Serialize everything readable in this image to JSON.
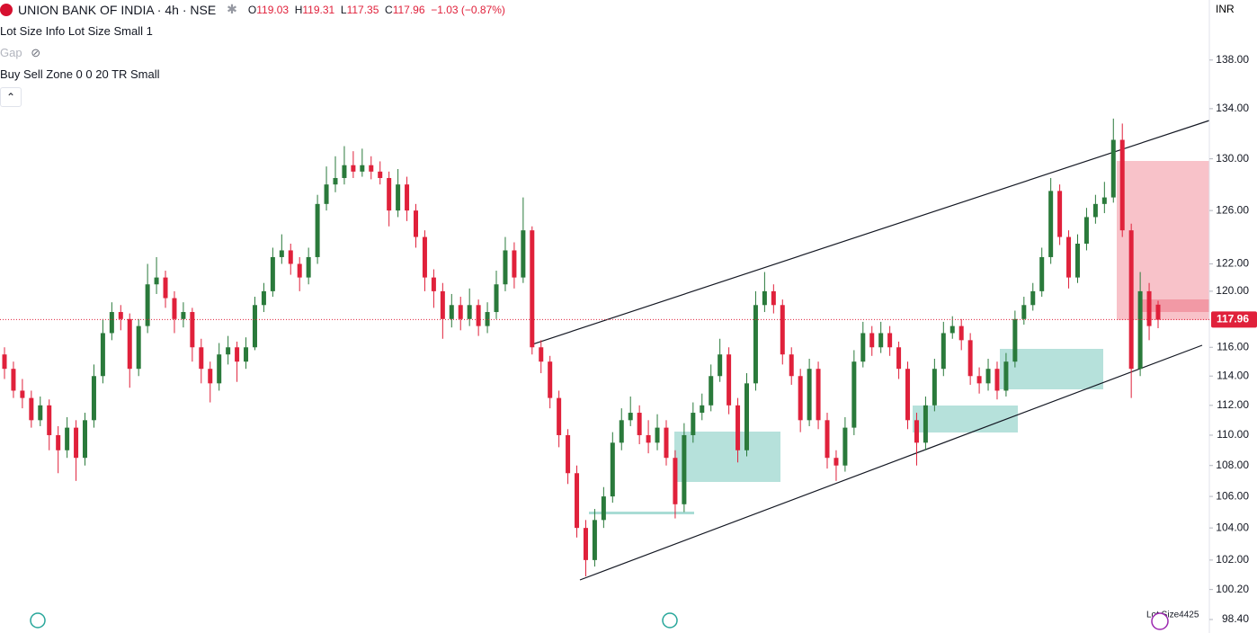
{
  "header": {
    "symbol": "UNION BANK OF INDIA · 4h · NSE",
    "ohlc_legend": [
      {
        "label": "O",
        "value": 119.03
      },
      {
        "label": "H",
        "value": 119.31
      },
      {
        "label": "L",
        "value": 117.35
      },
      {
        "label": "C",
        "value": 117.96
      }
    ],
    "change": "−1.03 (−0.87%)"
  },
  "indicators": [
    "Lot Size Info Lot Size Small 1",
    "Gap",
    "Buy Sell Zone 0 0 20 TR Small"
  ],
  "lot_size_badge": "Lot Size4425",
  "chart_data": {
    "type": "candlestick",
    "currency": "INR",
    "log_scale": true,
    "ylim": [
      97.6,
      143.1
    ],
    "yticks": [
      {
        "value": 138,
        "label": "138.00"
      },
      {
        "value": 134,
        "label": "134.00"
      },
      {
        "value": 130,
        "label": "130.00"
      },
      {
        "value": 126,
        "label": "126.00"
      },
      {
        "value": 122,
        "label": "122.00"
      },
      {
        "value": 120,
        "label": "120.00"
      },
      {
        "value": 116,
        "label": "116.00"
      },
      {
        "value": 114,
        "label": "114.00"
      },
      {
        "value": 112,
        "label": "112.00"
      },
      {
        "value": 110,
        "label": "110.00"
      },
      {
        "value": 108,
        "label": "108.00"
      },
      {
        "value": 106,
        "label": "106.00"
      },
      {
        "value": 104,
        "label": "104.00"
      },
      {
        "value": 102,
        "label": "102.00"
      },
      {
        "value": 100.2,
        "label": "100.20"
      },
      {
        "value": 98.4,
        "label": "98.40"
      }
    ],
    "up_color": "#2a7a3b",
    "down_color": "#e0213b",
    "last_price": 117.96,
    "ohlc": [
      [
        115.5,
        116,
        113.8,
        114.5
      ],
      [
        114.5,
        115,
        112.5,
        113
      ],
      [
        113,
        113.8,
        111.8,
        112.5
      ],
      [
        112.5,
        113,
        110.5,
        111
      ],
      [
        111,
        112.6,
        110.6,
        112
      ],
      [
        112,
        112.4,
        109,
        110
      ],
      [
        110,
        110.6,
        107.5,
        109
      ],
      [
        109,
        111.2,
        108.5,
        110.5
      ],
      [
        110.5,
        111,
        107,
        108.5
      ],
      [
        108.5,
        111.5,
        108,
        111
      ],
      [
        111,
        114.8,
        110.5,
        114
      ],
      [
        114,
        118,
        113.5,
        117
      ],
      [
        117,
        119.2,
        116.5,
        118.5
      ],
      [
        118.5,
        119,
        117.2,
        118
      ],
      [
        118,
        118.4,
        113.2,
        114.5
      ],
      [
        114.5,
        118,
        114,
        117.5
      ],
      [
        117.5,
        122,
        117,
        120.5
      ],
      [
        120.5,
        122.5,
        119.8,
        121
      ],
      [
        121,
        121.5,
        118.8,
        119.5
      ],
      [
        119.5,
        120,
        117,
        118
      ],
      [
        118,
        119.2,
        117.4,
        118.5
      ],
      [
        118.5,
        118.8,
        115,
        116
      ],
      [
        116,
        116.6,
        113.5,
        114.5
      ],
      [
        114.5,
        115,
        112.2,
        113.5
      ],
      [
        113.5,
        116.3,
        113,
        115.5
      ],
      [
        115.5,
        116.8,
        114.8,
        116
      ],
      [
        116,
        116.4,
        113.6,
        115
      ],
      [
        115,
        116.7,
        114.5,
        116
      ],
      [
        116,
        119.6,
        115.8,
        119
      ],
      [
        119,
        120.6,
        118.5,
        120
      ],
      [
        120,
        123.2,
        119.6,
        122.5
      ],
      [
        122.5,
        124.2,
        122,
        123
      ],
      [
        123,
        123.5,
        121.2,
        122
      ],
      [
        122,
        122.5,
        120,
        121
      ],
      [
        121,
        123.2,
        120.5,
        122.5
      ],
      [
        122.5,
        127.2,
        122,
        126.5
      ],
      [
        126.5,
        129.4,
        126,
        128
      ],
      [
        128,
        130.2,
        127.4,
        128.5
      ],
      [
        128.5,
        131,
        128,
        129.5
      ],
      [
        129.5,
        130.6,
        128.5,
        129
      ],
      [
        129,
        130.8,
        128.6,
        129.5
      ],
      [
        129.5,
        130.2,
        128.4,
        129
      ],
      [
        129,
        129.8,
        128,
        128.5
      ],
      [
        128.5,
        129,
        124.8,
        126
      ],
      [
        126,
        129.2,
        125.5,
        128
      ],
      [
        128,
        128.6,
        125.2,
        126
      ],
      [
        126,
        126.5,
        123.2,
        124
      ],
      [
        124,
        124.5,
        120,
        121
      ],
      [
        121,
        121.6,
        118.8,
        120
      ],
      [
        120,
        120.6,
        116.6,
        118
      ],
      [
        118,
        119.8,
        117.4,
        119
      ],
      [
        119,
        119.6,
        117.2,
        118
      ],
      [
        118,
        120.2,
        117.5,
        119
      ],
      [
        119,
        119.4,
        116.8,
        117.5
      ],
      [
        117.5,
        119.2,
        117,
        118.5
      ],
      [
        118.5,
        121.5,
        118,
        120.5
      ],
      [
        120.5,
        124,
        120,
        123
      ],
      [
        123,
        123.6,
        120.2,
        121
      ],
      [
        121,
        127,
        120.6,
        124.5
      ],
      [
        124.5,
        124.8,
        115.5,
        116
      ],
      [
        116,
        116.5,
        114.2,
        115
      ],
      [
        115,
        115.4,
        111.8,
        112.5
      ],
      [
        112.5,
        113,
        109.2,
        110
      ],
      [
        110,
        110.4,
        106.8,
        107.5
      ],
      [
        107.5,
        108,
        103.4,
        104
      ],
      [
        104,
        104.5,
        101,
        102
      ],
      [
        102,
        105.2,
        101.6,
        104.5
      ],
      [
        104.5,
        106.6,
        104,
        106
      ],
      [
        106,
        110.2,
        105.6,
        109.5
      ],
      [
        109.5,
        111.8,
        109,
        111
      ],
      [
        111,
        112.6,
        110.6,
        111.5
      ],
      [
        111.5,
        112,
        109.4,
        110
      ],
      [
        110,
        111,
        108.8,
        109.5
      ],
      [
        109.5,
        111.4,
        109,
        110.5
      ],
      [
        110.5,
        111,
        108,
        108.5
      ],
      [
        108.5,
        109,
        104.6,
        105.5
      ],
      [
        105.5,
        110.8,
        105,
        110
      ],
      [
        110,
        112.2,
        109.5,
        111.5
      ],
      [
        111.5,
        112.8,
        111,
        112
      ],
      [
        112,
        114.8,
        111.6,
        114
      ],
      [
        114,
        116.6,
        113.6,
        115.5
      ],
      [
        115.5,
        116,
        111.4,
        112
      ],
      [
        112,
        112.5,
        108.2,
        109
      ],
      [
        109,
        114.2,
        108.6,
        113.5
      ],
      [
        113.5,
        120,
        113,
        119
      ],
      [
        119,
        121.4,
        118.5,
        120
      ],
      [
        120,
        120.5,
        118.4,
        119
      ],
      [
        119,
        119.4,
        114.8,
        115.5
      ],
      [
        115.5,
        116,
        113.4,
        114
      ],
      [
        114,
        114.5,
        110.2,
        111
      ],
      [
        111,
        115.2,
        110.6,
        114.5
      ],
      [
        114.5,
        115,
        110.4,
        111
      ],
      [
        111,
        111.5,
        107.8,
        108.5
      ],
      [
        108.5,
        109,
        107,
        108
      ],
      [
        108,
        111.2,
        107.6,
        110.5
      ],
      [
        110.5,
        115.8,
        110,
        115
      ],
      [
        115,
        117.8,
        114.6,
        117
      ],
      [
        117,
        117.5,
        115.4,
        116
      ],
      [
        116,
        117.8,
        115.6,
        117
      ],
      [
        117,
        117.5,
        115.4,
        116
      ],
      [
        116,
        116.4,
        113.8,
        114.5
      ],
      [
        114.5,
        115,
        110.4,
        111
      ],
      [
        111,
        111.5,
        108,
        109.5
      ],
      [
        109.5,
        112.6,
        109,
        112
      ],
      [
        112,
        115.2,
        111.6,
        114.5
      ],
      [
        114.5,
        117.8,
        114,
        117
      ],
      [
        117,
        118.2,
        116.6,
        117.5
      ],
      [
        117.5,
        118,
        115.8,
        116.5
      ],
      [
        116.5,
        117,
        113.4,
        114
      ],
      [
        114,
        114.6,
        112.8,
        113.5
      ],
      [
        113.5,
        115.2,
        113,
        114.5
      ],
      [
        114.5,
        115,
        112.4,
        113
      ],
      [
        113,
        115.6,
        112.6,
        115
      ],
      [
        115,
        118.6,
        114.6,
        118
      ],
      [
        118,
        119.6,
        117.6,
        119
      ],
      [
        119,
        120.6,
        118.6,
        120
      ],
      [
        120,
        123.2,
        119.6,
        122.5
      ],
      [
        122.5,
        128.5,
        122,
        127.5
      ],
      [
        127.5,
        128,
        123.4,
        124
      ],
      [
        124,
        124.5,
        120.2,
        121
      ],
      [
        121,
        124.2,
        120.6,
        123.5
      ],
      [
        123.5,
        126.2,
        123,
        125.5
      ],
      [
        125.5,
        127.2,
        125,
        126.5
      ],
      [
        126.5,
        128.2,
        125.8,
        127
      ],
      [
        127,
        133.2,
        126.6,
        131.5
      ],
      [
        131.5,
        132.8,
        124,
        124.5
      ],
      [
        124.5,
        125,
        112.5,
        114.5
      ],
      [
        114.5,
        121.4,
        114,
        120
      ],
      [
        120,
        120.6,
        116.5,
        117.5
      ],
      [
        119.03,
        119.31,
        117.35,
        117.96
      ]
    ]
  }
}
